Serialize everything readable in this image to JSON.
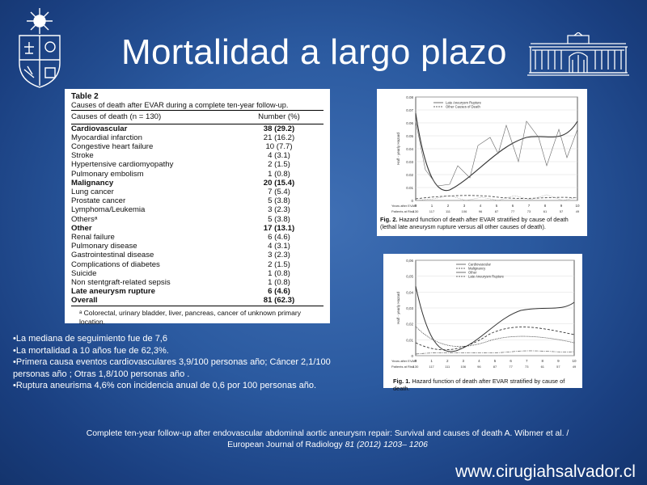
{
  "title": "Mortalidad a largo plazo",
  "table": {
    "label": "Table 2",
    "caption": "Causes of death after EVAR during a complete ten-year follow-up.",
    "header_cause": "Causes of death (n = 130)",
    "header_number": "Number (%)",
    "rows": [
      {
        "name": "Cardiovascular",
        "value": "38 (29.2)",
        "group": true
      },
      {
        "name": "Myocardial infarction",
        "value": "21 (16.2)"
      },
      {
        "name": "Congestive heart failure",
        "value": "10 (7.7)"
      },
      {
        "name": "Stroke",
        "value": "4 (3.1)"
      },
      {
        "name": "Hypertensive cardiomyopathy",
        "value": "2 (1.5)"
      },
      {
        "name": "Pulmonary embolism",
        "value": "1 (0.8)"
      },
      {
        "name": "Malignancy",
        "value": "20 (15.4)",
        "group": true
      },
      {
        "name": "Lung cancer",
        "value": "7 (5.4)"
      },
      {
        "name": "Prostate cancer",
        "value": "5 (3.8)"
      },
      {
        "name": "Lymphoma/Leukemia",
        "value": "3 (2.3)"
      },
      {
        "name": "Othersᵃ",
        "value": "5 (3.8)"
      },
      {
        "name": "Other",
        "value": "17 (13.1)",
        "group": true
      },
      {
        "name": "Renal failure",
        "value": "6 (4.6)"
      },
      {
        "name": "Pulmonary disease",
        "value": "4 (3.1)"
      },
      {
        "name": "Gastrointestinal disease",
        "value": "3 (2.3)"
      },
      {
        "name": "Complications of diabetes",
        "value": "2 (1.5)"
      },
      {
        "name": "Suicide",
        "value": "1 (0.8)"
      },
      {
        "name": "Non stentgraft-related sepsis",
        "value": "1 (0.8)"
      },
      {
        "name": "Late aneurysm rupture",
        "value": "6 (4.6)",
        "group": true
      },
      {
        "name": "Overall",
        "value": "81 (62.3)",
        "group": true
      }
    ],
    "footnote": "ᵃ Colorectal, urinary bladder, liver, pancreas, cancer of unknown primary location."
  },
  "fig2": {
    "caption_label": "Fig. 2.",
    "caption_text": " Hazard function of death after EVAR stratified by cause of death (lethal late aneurysm rupture versus all other causes of death).",
    "legend": [
      "Late Aneurysm Rupture",
      "Other Causes of Death"
    ],
    "ylabel": "Half - yearly Hazard",
    "xlabel": "Years after EVAR",
    "risk_label": "Patients at Risk",
    "y_ticks": [
      "0.08",
      "0.07",
      "0.06",
      "0.05",
      "0.04",
      "0.03",
      "0.02",
      "0.01",
      "0"
    ],
    "x_ticks": [
      "0",
      "1",
      "2",
      "3",
      "4",
      "5",
      "6",
      "7",
      "8",
      "9",
      "10"
    ],
    "risk_values": [
      "130",
      "117",
      "111",
      "106",
      "96",
      "87",
      "77",
      "73",
      "61",
      "57",
      "49"
    ]
  },
  "fig1": {
    "caption_label": "Fig. 1.",
    "caption_text": " Hazard function of death after EVAR stratified by cause of death.",
    "legend": [
      "Cardiovascular",
      "Malignancy",
      "Other",
      "Late Aneurysm Rupture"
    ],
    "ylabel": "Half - yearly Hazard",
    "xlabel": "Years after EVAR",
    "risk_label": "Patients at Risk",
    "y_ticks": [
      "0,06",
      "0,05",
      "0,04",
      "0,03",
      "0,02",
      "0,01",
      "0"
    ],
    "x_ticks": [
      "0",
      "1",
      "2",
      "3",
      "4",
      "5",
      "6",
      "7",
      "8",
      "9",
      "10"
    ],
    "risk_values": [
      "130",
      "117",
      "111",
      "106",
      "96",
      "87",
      "77",
      "73",
      "61",
      "57",
      "49"
    ]
  },
  "bullets": [
    "•La mediana de seguimiento fue de 7,6",
    "•La mortalidad a 10 años fue de 62,3%.",
    "•Primera causa eventos cardiovasculares 3,9/100 personas año;  Cáncer 2,1/100 personas año ;  Otras 1,8/100 personas año .",
    "•Ruptura aneurisma 4,6% con incidencia anual  de 0,6 por 100 personas año."
  ],
  "citation": {
    "line1": "Complete ten-year follow-up after endovascular abdominal aortic aneurysm repair: Survival and causes of death A. Wibmer et al. /",
    "line2_plain": "European Journal of Radiology ",
    "line2_italic": "81 (2012) 1203– 1206"
  },
  "website": "www.cirugiahsalvador.cl"
}
